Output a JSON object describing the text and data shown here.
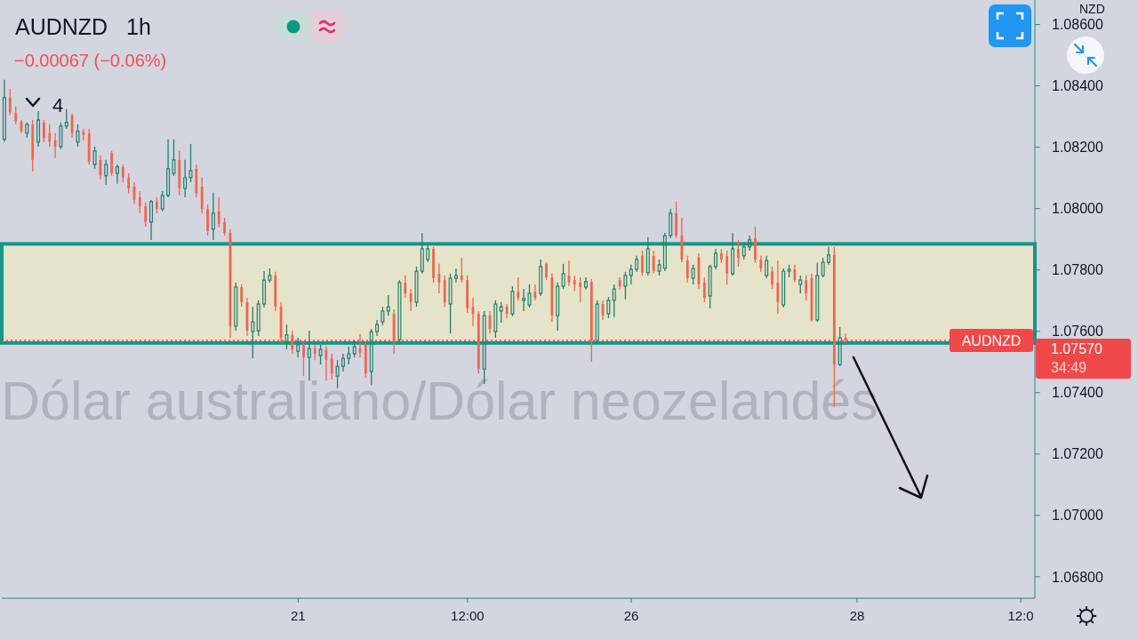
{
  "chart_data": {
    "type": "candlestick",
    "title": "AUDNZD 1h",
    "subtitle": "−0.00067 (−0.06%)",
    "ylabel": "NZD",
    "annotations": [
      "4",
      "1.07570",
      "34:49",
      "Dólar australiano/Dólar neozelandés"
    ],
    "categories": [
      null,
      null,
      null,
      null,
      null,
      null,
      null,
      null,
      null,
      null,
      null,
      null,
      null,
      null,
      null,
      null,
      null,
      null,
      null,
      null,
      null,
      null,
      null,
      null,
      null,
      null,
      null,
      null,
      null,
      null,
      null,
      null,
      null,
      null,
      null,
      null,
      null,
      null,
      null,
      null,
      null,
      null,
      null,
      null,
      null,
      null,
      null,
      null,
      null,
      null,
      null,
      null,
      "21",
      null,
      null,
      null,
      null,
      null,
      null,
      null,
      null,
      null,
      null,
      null,
      null,
      null,
      null,
      null,
      null,
      null,
      null,
      null,
      null,
      null,
      null,
      null,
      null,
      null,
      null,
      null,
      null,
      null,
      "12:00",
      null,
      null,
      null,
      null,
      null,
      null,
      null,
      null,
      null,
      null,
      null,
      null,
      null,
      null,
      null,
      null,
      null,
      null,
      null,
      null,
      null,
      null,
      null,
      null,
      null,
      null,
      null,
      null,
      "26",
      null,
      null,
      null,
      null,
      null,
      null,
      null,
      null,
      null,
      null,
      null,
      null,
      null,
      null,
      null,
      null,
      null,
      null,
      null,
      null,
      null,
      null,
      null,
      null,
      null,
      null,
      null,
      null,
      null,
      null,
      null,
      null,
      null,
      null,
      null,
      null,
      null,
      null,
      null,
      "28",
      null,
      null,
      null,
      null,
      null,
      null,
      null,
      null,
      null,
      null,
      null,
      null,
      null,
      null,
      null,
      null,
      null,
      null,
      null,
      null,
      null,
      null,
      null,
      null,
      null,
      null,
      null,
      null,
      "12:0",
      null,
      null
    ],
    "ohlc": [
      [
        1.08226,
        1.0842,
        1.08217,
        1.08362
      ],
      [
        1.08362,
        1.08391,
        1.08304,
        1.08313
      ],
      [
        1.08313,
        1.08333,
        1.08275,
        1.08284
      ],
      [
        1.08284,
        1.08289,
        1.08246,
        1.08252
      ],
      [
        1.08246,
        1.08281,
        1.08231,
        1.08275
      ],
      [
        1.08275,
        1.08289,
        1.08121,
        1.08159
      ],
      [
        1.08217,
        1.08318,
        1.08202,
        1.08289
      ],
      [
        1.08281,
        1.08289,
        1.08217,
        1.08231
      ],
      [
        1.08246,
        1.08275,
        1.08202,
        1.08217
      ],
      [
        1.08223,
        1.08246,
        1.08165,
        1.08202
      ],
      [
        1.08202,
        1.08281,
        1.08194,
        1.08269
      ],
      [
        1.08269,
        1.08324,
        1.0826,
        1.08281
      ],
      [
        1.08304,
        1.0831,
        1.08231,
        1.08246
      ],
      [
        1.08217,
        1.08275,
        1.08202,
        1.08252
      ],
      [
        1.08252,
        1.0826,
        1.08223,
        1.0824
      ],
      [
        1.08246,
        1.0826,
        1.08144,
        1.08153
      ],
      [
        1.08144,
        1.08202,
        1.0813,
        1.08188
      ],
      [
        1.08159,
        1.08173,
        1.08095,
        1.08107
      ],
      [
        1.08107,
        1.08159,
        1.08078,
        1.08144
      ],
      [
        1.08182,
        1.08188,
        1.08107,
        1.08115
      ],
      [
        1.08115,
        1.08144,
        1.08081,
        1.08136
      ],
      [
        1.08136,
        1.08144,
        1.08086,
        1.08101
      ],
      [
        1.08101,
        1.08115,
        1.08049,
        1.08066
      ],
      [
        1.08072,
        1.08086,
        1.08014,
        1.08028
      ],
      [
        1.08037,
        1.08057,
        1.07985,
        1.08008
      ],
      [
        1.08008,
        1.0802,
        1.07941,
        1.07956
      ],
      [
        1.07956,
        1.08028,
        1.07898,
        1.08023
      ],
      [
        1.08023,
        1.08037,
        1.07985,
        1.07999
      ],
      [
        1.07999,
        1.08057,
        1.07991,
        1.08043
      ],
      [
        1.08043,
        1.08226,
        1.08037,
        1.0813
      ],
      [
        1.08115,
        1.08226,
        1.08107,
        1.08159
      ],
      [
        1.08159,
        1.08188,
        1.08043,
        1.08066
      ],
      [
        1.08066,
        1.08159,
        1.08037,
        1.08101
      ],
      [
        1.08101,
        1.08211,
        1.08086,
        1.08124
      ],
      [
        1.0813,
        1.08144,
        1.08037,
        1.08049
      ],
      [
        1.08072,
        1.08101,
        1.07985,
        1.07999
      ],
      [
        1.07999,
        1.08014,
        1.07912,
        1.07927
      ],
      [
        1.07933,
        1.08052,
        1.07898,
        1.07985
      ],
      [
        1.07991,
        1.08037,
        1.07939,
        1.0795
      ],
      [
        1.07956,
        1.0797,
        1.07912,
        1.07921
      ],
      [
        1.07921,
        1.07933,
        1.07579,
        1.07617
      ],
      [
        1.07617,
        1.07759,
        1.07602,
        1.07744
      ],
      [
        1.07744,
        1.07753,
        1.0768,
        1.07695
      ],
      [
        1.07695,
        1.07709,
        1.07585,
        1.07602
      ],
      [
        1.07599,
        1.0768,
        1.07512,
        1.07631
      ],
      [
        1.07602,
        1.07701,
        1.07585,
        1.07689
      ],
      [
        1.07689,
        1.07796,
        1.07678,
        1.07767
      ],
      [
        1.07767,
        1.07805,
        1.07759,
        1.07782
      ],
      [
        1.07782,
        1.07794,
        1.07666,
        1.0768
      ],
      [
        1.0768,
        1.07695,
        1.07564,
        1.07579
      ],
      [
        1.07564,
        1.07622,
        1.07541,
        1.07588
      ],
      [
        1.07588,
        1.07602,
        1.07527,
        1.07541
      ],
      [
        1.07535,
        1.07579,
        1.07515,
        1.07556
      ],
      [
        1.07556,
        1.07564,
        1.07454,
        1.07515
      ],
      [
        1.07515,
        1.07602,
        1.0744,
        1.07544
      ],
      [
        1.07544,
        1.07556,
        1.07506,
        1.07527
      ],
      [
        1.07521,
        1.07556,
        1.07492,
        1.07541
      ],
      [
        1.07541,
        1.0755,
        1.0744,
        1.07506
      ],
      [
        1.07512,
        1.07527,
        1.07443,
        1.07463
      ],
      [
        1.07454,
        1.07506,
        1.07414,
        1.07486
      ],
      [
        1.07486,
        1.07527,
        1.07469,
        1.07512
      ],
      [
        1.07512,
        1.0755,
        1.07492,
        1.07527
      ],
      [
        1.07527,
        1.0757,
        1.07515,
        1.0755
      ],
      [
        1.07544,
        1.07591,
        1.07515,
        1.0753
      ],
      [
        1.07556,
        1.07567,
        1.07448,
        1.07463
      ],
      [
        1.07469,
        1.07608,
        1.07425,
        1.07599
      ],
      [
        1.07599,
        1.07637,
        1.07585,
        1.07622
      ],
      [
        1.07631,
        1.0768,
        1.0762,
        1.07666
      ],
      [
        1.07666,
        1.07718,
        1.07651,
        1.0768
      ],
      [
        1.07657,
        1.07672,
        1.07527,
        1.0757
      ],
      [
        1.07573,
        1.07767,
        1.07564,
        1.07759
      ],
      [
        1.07759,
        1.07782,
        1.07709,
        1.07724
      ],
      [
        1.07724,
        1.07738,
        1.07666,
        1.07695
      ],
      [
        1.07695,
        1.07811,
        1.0768,
        1.07796
      ],
      [
        1.07796,
        1.07921,
        1.07788,
        1.07869
      ],
      [
        1.07834,
        1.07883,
        1.07825,
        1.07869
      ],
      [
        1.07869,
        1.07875,
        1.07759,
        1.07773
      ],
      [
        1.07788,
        1.0782,
        1.07724,
        1.07759
      ],
      [
        1.07767,
        1.07782,
        1.0768,
        1.07695
      ],
      [
        1.07689,
        1.07788,
        1.07593,
        1.07773
      ],
      [
        1.07773,
        1.07805,
        1.07759,
        1.07782
      ],
      [
        1.07782,
        1.0784,
        1.07759,
        1.07767
      ],
      [
        1.07767,
        1.07782,
        1.0766,
        1.07675
      ],
      [
        1.0768,
        1.07709,
        1.07617,
        1.07657
      ],
      [
        1.07657,
        1.07666,
        1.07463,
        1.07477
      ],
      [
        1.07477,
        1.07666,
        1.07428,
        1.07651
      ],
      [
        1.07651,
        1.07666,
        1.07593,
        1.07608
      ],
      [
        1.07599,
        1.07701,
        1.07579,
        1.07689
      ],
      [
        1.07666,
        1.07695,
        1.07628,
        1.0768
      ],
      [
        1.0768,
        1.07689,
        1.07643,
        1.07657
      ],
      [
        1.07657,
        1.07747,
        1.07649,
        1.0773
      ],
      [
        1.0773,
        1.07776,
        1.07701,
        1.07709
      ],
      [
        1.07701,
        1.07738,
        1.07666,
        1.07707
      ],
      [
        1.07686,
        1.07753,
        1.07678,
        1.07724
      ],
      [
        1.0773,
        1.07753,
        1.07701,
        1.07709
      ],
      [
        1.07724,
        1.07834,
        1.07715,
        1.07811
      ],
      [
        1.0782,
        1.07825,
        1.07767,
        1.07776
      ],
      [
        1.07776,
        1.07788,
        1.07631,
        1.07651
      ],
      [
        1.07651,
        1.07759,
        1.07602,
        1.07747
      ],
      [
        1.07747,
        1.0782,
        1.07738,
        1.07788
      ],
      [
        1.07782,
        1.07831,
        1.07747,
        1.07759
      ],
      [
        1.07767,
        1.07782,
        1.0773,
        1.07753
      ],
      [
        1.07759,
        1.07776,
        1.07695,
        1.07744
      ],
      [
        1.07744,
        1.07776,
        1.07736,
        1.07762
      ],
      [
        1.07762,
        1.0777,
        1.07501,
        1.0757
      ],
      [
        1.0757,
        1.07701,
        1.07562,
        1.07689
      ],
      [
        1.07689,
        1.07701,
        1.07637,
        1.07651
      ],
      [
        1.07657,
        1.07712,
        1.07643,
        1.07701
      ],
      [
        1.07701,
        1.07753,
        1.07646,
        1.07738
      ],
      [
        1.07767,
        1.07776,
        1.07736,
        1.07747
      ],
      [
        1.07747,
        1.07794,
        1.07704,
        1.07782
      ],
      [
        1.07782,
        1.07817,
        1.07753,
        1.07802
      ],
      [
        1.07802,
        1.07846,
        1.07794,
        1.07834
      ],
      [
        1.07846,
        1.07863,
        1.07782,
        1.07791
      ],
      [
        1.07791,
        1.07907,
        1.07782,
        1.07869
      ],
      [
        1.07846,
        1.07863,
        1.07788,
        1.07796
      ],
      [
        1.07796,
        1.07834,
        1.07782,
        1.07817
      ],
      [
        1.07805,
        1.07921,
        1.07796,
        1.07912
      ],
      [
        1.07912,
        1.07999,
        1.07904,
        1.07985
      ],
      [
        1.07985,
        1.08023,
        1.07904,
        1.07912
      ],
      [
        1.07912,
        1.0797,
        1.07825,
        1.07834
      ],
      [
        1.07831,
        1.07846,
        1.07759,
        1.07773
      ],
      [
        1.07773,
        1.07817,
        1.07753,
        1.07805
      ],
      [
        1.0784,
        1.07854,
        1.07738,
        1.07753
      ],
      [
        1.07759,
        1.07776,
        1.07695,
        1.07709
      ],
      [
        1.07715,
        1.07817,
        1.07675,
        1.07811
      ],
      [
        1.07811,
        1.07869,
        1.07802,
        1.07854
      ],
      [
        1.07854,
        1.07869,
        1.07823,
        1.07834
      ],
      [
        1.07846,
        1.07863,
        1.07753,
        1.07788
      ],
      [
        1.07788,
        1.07921,
        1.07782,
        1.07869
      ],
      [
        1.07869,
        1.07898,
        1.07811,
        1.0784
      ],
      [
        1.07846,
        1.07889,
        1.07834,
        1.07875
      ],
      [
        1.07875,
        1.07912,
        1.07863,
        1.07898
      ],
      [
        1.07904,
        1.07941,
        1.07823,
        1.07834
      ],
      [
        1.07834,
        1.07846,
        1.07794,
        1.07805
      ],
      [
        1.07782,
        1.07846,
        1.07773,
        1.07831
      ],
      [
        1.07796,
        1.07811,
        1.07738,
        1.07753
      ],
      [
        1.07759,
        1.07831,
        1.07657,
        1.07695
      ],
      [
        1.07686,
        1.07805,
        1.07678,
        1.07796
      ],
      [
        1.07796,
        1.07817,
        1.07776,
        1.07802
      ],
      [
        1.07802,
        1.07817,
        1.07759,
        1.07767
      ],
      [
        1.07753,
        1.07782,
        1.07724,
        1.07767
      ],
      [
        1.07767,
        1.07782,
        1.07701,
        1.07724
      ],
      [
        1.07773,
        1.07788,
        1.07631,
        1.07637
      ],
      [
        1.07637,
        1.07823,
        1.07631,
        1.07782
      ],
      [
        1.07782,
        1.0784,
        1.07776,
        1.07825
      ],
      [
        1.07825,
        1.07875,
        1.07817,
        1.07849
      ],
      [
        1.07849,
        1.07875,
        1.07353,
        1.07492
      ],
      [
        1.07492,
        1.07614,
        1.07486,
        1.07579
      ],
      [
        1.07579,
        1.07593,
        1.07562,
        1.0757
      ],
      null,
      null,
      null,
      null,
      null,
      null,
      null,
      null,
      null,
      null,
      null,
      null,
      null,
      null,
      null,
      null,
      null,
      null,
      null,
      null,
      null,
      null,
      null,
      null,
      null,
      null,
      null,
      null,
      null,
      null,
      null,
      null,
      null
    ],
    "colors": [
      "#22806f",
      "#ef6650",
      "#ef6650",
      "#ef6650",
      "#22806f",
      "#ef6650",
      "#22806f",
      "#ef6650",
      "#ef6650",
      "#ef6650",
      "#22806f",
      "#22806f",
      "#ef6650",
      "#22806f",
      "#ef6650",
      "#ef6650",
      "#22806f",
      "#ef6650",
      "#22806f",
      "#ef6650",
      "#22806f",
      "#ef6650",
      "#ef6650",
      "#ef6650",
      "#ef6650",
      "#ef6650",
      "#22806f",
      "#ef6650",
      "#22806f",
      "#22806f",
      "#22806f",
      "#ef6650",
      "#22806f",
      "#22806f",
      "#ef6650",
      "#ef6650",
      "#ef6650",
      "#22806f",
      "#ef6650",
      "#ef6650",
      "#ef6650",
      "#22806f",
      "#ef6650",
      "#ef6650",
      "#22806f",
      "#22806f",
      "#22806f",
      "#22806f",
      "#ef6650",
      "#ef6650",
      "#22806f",
      "#ef6650",
      "#22806f",
      "#ef6650",
      "#22806f",
      "#ef6650",
      "#22806f",
      "#ef6650",
      "#ef6650",
      "#22806f",
      "#22806f",
      "#22806f",
      "#22806f",
      "#ef6650",
      "#ef6650",
      "#22806f",
      "#22806f",
      "#22806f",
      "#22806f",
      "#ef6650",
      "#22806f",
      "#ef6650",
      "#ef6650",
      "#22806f",
      "#22806f",
      "#22806f",
      "#ef6650",
      "#ef6650",
      "#ef6650",
      "#22806f",
      "#22806f",
      "#ef6650",
      "#ef6650",
      "#ef6650",
      "#ef6650",
      "#22806f",
      "#ef6650",
      "#22806f",
      "#22806f",
      "#ef6650",
      "#22806f",
      "#ef6650",
      "#22806f",
      "#22806f",
      "#ef6650",
      "#22806f",
      "#ef6650",
      "#ef6650",
      "#22806f",
      "#22806f",
      "#ef6650",
      "#ef6650",
      "#ef6650",
      "#22806f",
      "#ef6650",
      "#22806f",
      "#ef6650",
      "#22806f",
      "#22806f",
      "#ef6650",
      "#22806f",
      "#22806f",
      "#22806f",
      "#ef6650",
      "#22806f",
      "#ef6650",
      "#22806f",
      "#22806f",
      "#22806f",
      "#ef6650",
      "#ef6650",
      "#ef6650",
      "#22806f",
      "#ef6650",
      "#ef6650",
      "#22806f",
      "#22806f",
      "#ef6650",
      "#ef6650",
      "#22806f",
      "#ef6650",
      "#22806f",
      "#22806f",
      "#ef6650",
      "#ef6650",
      "#22806f",
      "#ef6650",
      "#ef6650",
      "#22806f",
      "#22806f",
      "#ef6650",
      "#22806f",
      "#ef6650",
      "#ef6650",
      "#22806f",
      "#22806f",
      "#22806f",
      "#ef6650",
      "#22806f",
      "#ef6650",
      null,
      null,
      null,
      null,
      null,
      null,
      null,
      null,
      null,
      null,
      null,
      null,
      null,
      null,
      null,
      null,
      null,
      null,
      null,
      null,
      null,
      null,
      null,
      null,
      null,
      null,
      null,
      null,
      null,
      null,
      null,
      null,
      null
    ],
    "ylim": [
      1.0673,
      1.0868
    ],
    "yticks": [
      {
        "value": 1.068,
        "label": "1.06800"
      },
      {
        "value": 1.07,
        "label": "1.07000"
      },
      {
        "value": 1.072,
        "label": "1.07200"
      },
      {
        "value": 1.074,
        "label": "1.07400"
      },
      {
        "value": 1.076,
        "label": "1.07600"
      },
      {
        "value": 1.078,
        "label": "1.07800"
      },
      {
        "value": 1.08,
        "label": "1.08000"
      },
      {
        "value": 1.082,
        "label": "1.08200"
      },
      {
        "value": 1.084,
        "label": "1.08400"
      },
      {
        "value": 1.086,
        "label": "1.08600"
      }
    ],
    "bands": [
      {
        "axis": "y",
        "from": 1.07562,
        "to": 1.07885,
        "color": "#e5e3c8"
      }
    ],
    "ref_lines": [
      {
        "axis": "y",
        "value": 1.0757,
        "label": "AUDNZD",
        "color": "#f04848",
        "line_style": "dotted"
      }
    ]
  }
}
